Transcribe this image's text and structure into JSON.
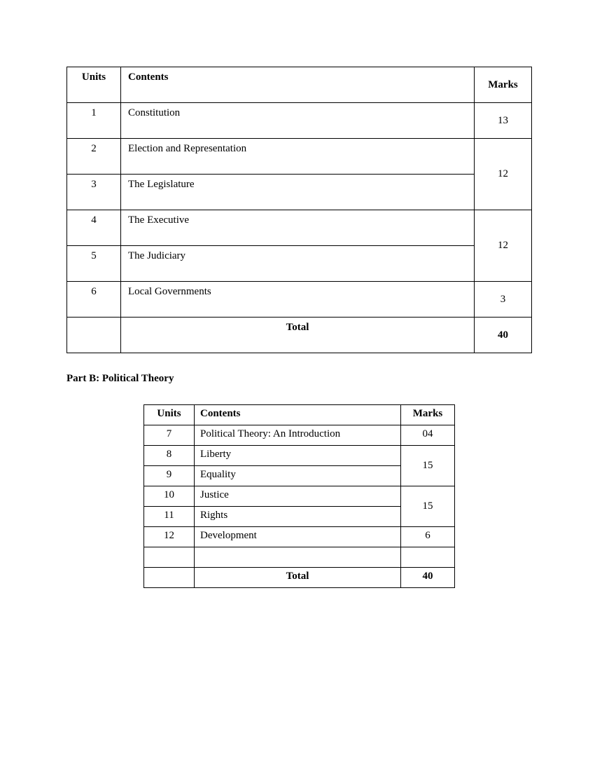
{
  "table1": {
    "headers": {
      "units": "Units",
      "contents": "Contents",
      "marks": "Marks"
    },
    "rows": [
      {
        "unit": "1",
        "content": "Constitution",
        "marks": "13"
      },
      {
        "unit": "2",
        "content": "Election and Representation",
        "marks": "12",
        "rowspan": 2
      },
      {
        "unit": "3",
        "content": "The Legislature"
      },
      {
        "unit": "4",
        "content": "The Executive",
        "marks": "12",
        "rowspan": 2
      },
      {
        "unit": "5",
        "content": "The Judiciary"
      },
      {
        "unit": "6",
        "content": "Local Governments",
        "marks": "3"
      }
    ],
    "total": {
      "label": "Total",
      "value": "40"
    }
  },
  "section_heading": "Part B: Political Theory",
  "table2": {
    "headers": {
      "units": "Units",
      "contents": "Contents",
      "marks": "Marks"
    },
    "rows": [
      {
        "unit": "7",
        "content": "Political Theory: An Introduction",
        "marks": "04"
      },
      {
        "unit": "8",
        "content": "Liberty",
        "marks": "15",
        "rowspan": 2
      },
      {
        "unit": "9",
        "content": "Equality"
      },
      {
        "unit": "10",
        "content": "Justice",
        "marks": "15",
        "rowspan": 2
      },
      {
        "unit": "11",
        "content": "Rights"
      },
      {
        "unit": "12",
        "content": "Development",
        "marks": "6"
      }
    ],
    "total": {
      "label": "Total",
      "value": "40"
    }
  }
}
